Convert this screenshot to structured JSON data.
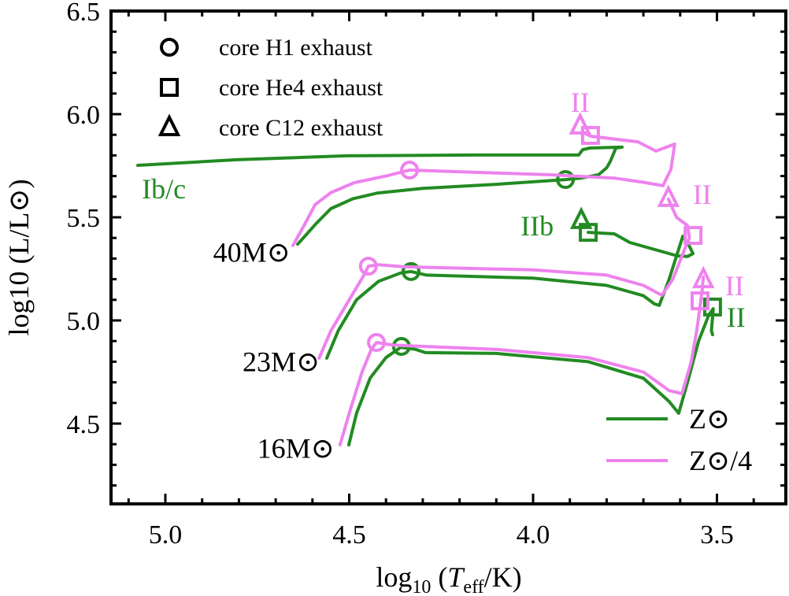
{
  "chart_data": {
    "type": "line",
    "title": "",
    "xlabel": "log10 (Teff/K)",
    "ylabel": "log10 (L/L⊙)",
    "xlim": [
      5.15,
      3.31
    ],
    "ylim": [
      4.11,
      6.5
    ],
    "x_inverted": true,
    "xticks": [
      5.0,
      4.5,
      4.0,
      3.5
    ],
    "xtick_labels": [
      "5.0",
      "4.5",
      "4.0",
      "3.5"
    ],
    "yticks": [
      4.5,
      5.0,
      5.5,
      6.0,
      6.5
    ],
    "ytick_labels": [
      "4.5",
      "5.0",
      "5.5",
      "6.0",
      "6.5"
    ],
    "grid": false,
    "colors": {
      "solar": "#228B22",
      "quarter": "#EE82EE"
    },
    "marker_legend": {
      "placement": "top-left",
      "entries": [
        {
          "marker": "circle",
          "label": "core H1 exhaust"
        },
        {
          "marker": "square",
          "label": "core He4 exhaust"
        },
        {
          "marker": "triangle",
          "label": "core C12 exhaust"
        }
      ]
    },
    "line_legend": {
      "placement": "bottom-right",
      "entries": [
        {
          "series": "solar",
          "label": "Z⊙",
          "main": "Z",
          "sub": "⊙",
          "suffix": ""
        },
        {
          "series": "quarter",
          "label": "Z⊙/4",
          "main": "Z",
          "sub": "⊙",
          "suffix": "/4"
        }
      ]
    },
    "series": [
      {
        "name": "40M⊙ Z⊙",
        "color": "solar",
        "points": [
          [
            4.64,
            5.37
          ],
          [
            4.59,
            5.47
          ],
          [
            4.55,
            5.542
          ],
          [
            4.49,
            5.59
          ],
          [
            4.422,
            5.618
          ],
          [
            4.3,
            5.64
          ],
          [
            4.1,
            5.66
          ],
          [
            3.912,
            5.683
          ],
          [
            3.87,
            5.69
          ],
          [
            3.822,
            5.706
          ],
          [
            3.8,
            5.74
          ],
          [
            3.79,
            5.771
          ],
          [
            3.775,
            5.836
          ],
          [
            3.758,
            5.84
          ],
          [
            3.845,
            5.836
          ],
          [
            3.865,
            5.828
          ],
          [
            3.876,
            5.802
          ],
          [
            4.165,
            5.802
          ],
          [
            4.508,
            5.798
          ],
          [
            4.807,
            5.779
          ],
          [
            5.075,
            5.752
          ]
        ],
        "markers": [
          {
            "type": "circle",
            "x": 3.912,
            "y": 5.683
          }
        ]
      },
      {
        "name": "40M⊙ Z⊙/4",
        "color": "quarter",
        "points": [
          [
            4.653,
            5.363
          ],
          [
            4.62,
            5.47
          ],
          [
            4.593,
            5.561
          ],
          [
            4.55,
            5.62
          ],
          [
            4.486,
            5.668
          ],
          [
            4.4,
            5.7
          ],
          [
            4.336,
            5.729
          ],
          [
            4.1,
            5.715
          ],
          [
            3.951,
            5.706
          ],
          [
            3.78,
            5.69
          ],
          [
            3.7,
            5.67
          ],
          [
            3.647,
            5.653
          ],
          [
            3.625,
            5.733
          ],
          [
            3.615,
            5.855
          ],
          [
            3.666,
            5.821
          ],
          [
            3.715,
            5.866
          ],
          [
            3.844,
            5.893
          ],
          [
            3.865,
            5.912
          ]
        ],
        "markers": [
          {
            "type": "circle",
            "x": 4.336,
            "y": 5.729
          },
          {
            "type": "square",
            "x": 3.844,
            "y": 5.897
          },
          {
            "type": "triangle",
            "x": 3.872,
            "y": 5.943
          }
        ]
      },
      {
        "name": "23M⊙ Z⊙",
        "color": "solar",
        "points": [
          [
            4.561,
            4.817
          ],
          [
            4.53,
            4.95
          ],
          [
            4.48,
            5.1
          ],
          [
            4.42,
            5.19
          ],
          [
            4.36,
            5.23
          ],
          [
            4.332,
            5.237
          ],
          [
            4.29,
            5.22
          ],
          [
            4.0,
            5.205
          ],
          [
            3.8,
            5.17
          ],
          [
            3.7,
            5.12
          ],
          [
            3.67,
            5.08
          ],
          [
            3.657,
            5.073
          ],
          [
            3.63,
            5.2
          ],
          [
            3.593,
            5.408
          ],
          [
            3.575,
            5.36
          ],
          [
            3.565,
            5.324
          ],
          [
            3.58,
            5.31
          ],
          [
            3.608,
            5.313
          ],
          [
            3.737,
            5.378
          ],
          [
            3.779,
            5.42
          ],
          [
            3.85,
            5.427
          ]
        ],
        "markers": [
          {
            "type": "circle",
            "x": 4.332,
            "y": 5.237
          },
          {
            "type": "square",
            "x": 3.85,
            "y": 5.427
          },
          {
            "type": "triangle",
            "x": 3.869,
            "y": 5.485
          }
        ]
      },
      {
        "name": "23M⊙ Z⊙/4",
        "color": "quarter",
        "points": [
          [
            4.582,
            4.817
          ],
          [
            4.55,
            4.95
          ],
          [
            4.5,
            5.1
          ],
          [
            4.46,
            5.22
          ],
          [
            4.448,
            5.263
          ],
          [
            4.42,
            5.27
          ],
          [
            4.35,
            5.26
          ],
          [
            4.0,
            5.245
          ],
          [
            3.8,
            5.22
          ],
          [
            3.7,
            5.17
          ],
          [
            3.65,
            5.122
          ],
          [
            3.62,
            5.2
          ],
          [
            3.587,
            5.35
          ],
          [
            3.575,
            5.4
          ],
          [
            3.58,
            5.46
          ],
          [
            3.61,
            5.5
          ],
          [
            3.632,
            5.588
          ]
        ],
        "markers": [
          {
            "type": "circle",
            "x": 4.448,
            "y": 5.263
          },
          {
            "type": "square",
            "x": 3.565,
            "y": 5.412
          },
          {
            "type": "triangle",
            "x": 3.632,
            "y": 5.592
          }
        ]
      },
      {
        "name": "16M⊙ Z⊙",
        "color": "solar",
        "points": [
          [
            4.501,
            4.397
          ],
          [
            4.48,
            4.55
          ],
          [
            4.443,
            4.721
          ],
          [
            4.4,
            4.82
          ],
          [
            4.36,
            4.87
          ],
          [
            4.32,
            4.86
          ],
          [
            4.293,
            4.844
          ],
          [
            4.1,
            4.84
          ],
          [
            3.85,
            4.8
          ],
          [
            3.7,
            4.72
          ],
          [
            3.63,
            4.607
          ],
          [
            3.604,
            4.55
          ],
          [
            3.58,
            4.7
          ],
          [
            3.55,
            4.9
          ],
          [
            3.522,
            5.027
          ],
          [
            3.51,
            5.057
          ],
          [
            3.515,
            4.95
          ],
          [
            3.512,
            4.931
          ]
        ],
        "markers": [
          {
            "type": "circle",
            "x": 4.358,
            "y": 4.874
          },
          {
            "type": "square",
            "x": 3.512,
            "y": 5.065
          }
        ]
      },
      {
        "name": "16M⊙ Z⊙/4",
        "color": "quarter",
        "points": [
          [
            4.525,
            4.397
          ],
          [
            4.5,
            4.55
          ],
          [
            4.465,
            4.75
          ],
          [
            4.44,
            4.86
          ],
          [
            4.426,
            4.893
          ],
          [
            4.38,
            4.88
          ],
          [
            4.1,
            4.86
          ],
          [
            3.85,
            4.82
          ],
          [
            3.7,
            4.75
          ],
          [
            3.63,
            4.66
          ],
          [
            3.595,
            4.645
          ],
          [
            3.57,
            4.8
          ],
          [
            3.555,
            4.95
          ],
          [
            3.545,
            5.08
          ],
          [
            3.54,
            5.15
          ],
          [
            3.537,
            5.21
          ]
        ],
        "markers": [
          {
            "type": "circle",
            "x": 4.426,
            "y": 4.893
          },
          {
            "type": "square",
            "x": 3.546,
            "y": 5.095
          },
          {
            "type": "triangle",
            "x": 3.537,
            "y": 5.198
          }
        ]
      }
    ],
    "annotations": [
      {
        "text": "Ib/c",
        "x": 5.004,
        "y": 5.637,
        "color": "solar",
        "anchor": "middle"
      },
      {
        "text": "II",
        "x": 3.872,
        "y": 6.057,
        "color": "quarter",
        "anchor": "middle"
      },
      {
        "text": "IIb",
        "x": 3.989,
        "y": 5.458,
        "color": "solar",
        "anchor": "middle"
      },
      {
        "text": "II",
        "x": 3.54,
        "y": 5.61,
        "color": "quarter",
        "anchor": "middle"
      },
      {
        "text": "II",
        "x": 3.452,
        "y": 5.168,
        "color": "quarter",
        "anchor": "middle"
      },
      {
        "text": "II",
        "x": 3.448,
        "y": 5.015,
        "color": "solar",
        "anchor": "middle"
      }
    ],
    "mass_labels": [
      {
        "mass": "40",
        "label": "40M⊙",
        "x": 4.66,
        "y": 5.33
      },
      {
        "mass": "23",
        "label": "23M⊙",
        "x": 4.58,
        "y": 4.8
      },
      {
        "mass": "16",
        "label": "16M⊙",
        "x": 4.54,
        "y": 4.38
      }
    ]
  }
}
